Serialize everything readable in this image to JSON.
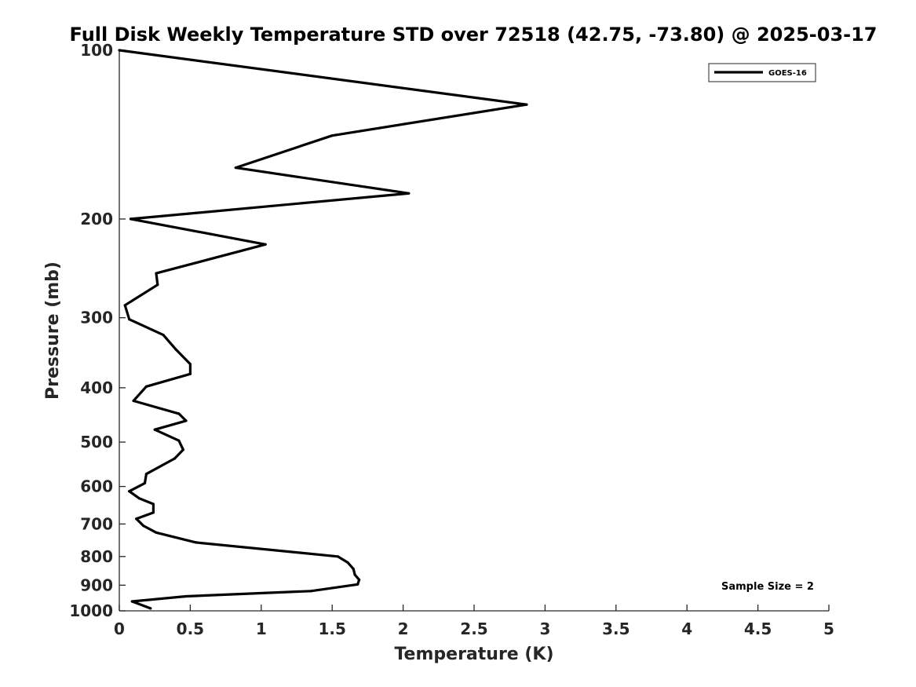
{
  "chart_data": {
    "type": "line",
    "title": "Full Disk Weekly Temperature STD over 72518 (42.75, -73.80) @ 2025-03-17",
    "xlabel": "Temperature (K)",
    "ylabel": "Pressure (mb)",
    "xlim": [
      0,
      5
    ],
    "ylim": [
      100,
      1000
    ],
    "yscale": "log",
    "y_reversed": true,
    "grid": false,
    "x_ticks": [
      0,
      0.5,
      1,
      1.5,
      2,
      2.5,
      3,
      3.5,
      4,
      4.5,
      5
    ],
    "x_tick_labels": [
      "0",
      "0.5",
      "1",
      "1.5",
      "2",
      "2.5",
      "3",
      "3.5",
      "4",
      "4.5",
      "5"
    ],
    "y_ticks": [
      100,
      200,
      300,
      400,
      500,
      600,
      700,
      800,
      900,
      1000
    ],
    "y_tick_labels": [
      "100",
      "200",
      "300",
      "400",
      "500",
      "600",
      "700",
      "800",
      "900",
      "1000"
    ],
    "legend": {
      "position": "top-right",
      "entries": [
        "GOES-16"
      ]
    },
    "annotation": "Sample Size = 2",
    "series": [
      {
        "name": "GOES-16",
        "color": "#000000",
        "points": [
          {
            "t": 0.0,
            "p": 100
          },
          {
            "t": 2.87,
            "p": 125
          },
          {
            "t": 1.5,
            "p": 142
          },
          {
            "t": 0.82,
            "p": 162
          },
          {
            "t": 2.04,
            "p": 180
          },
          {
            "t": 0.08,
            "p": 200
          },
          {
            "t": 1.03,
            "p": 222
          },
          {
            "t": 0.26,
            "p": 250
          },
          {
            "t": 0.27,
            "p": 262
          },
          {
            "t": 0.04,
            "p": 285
          },
          {
            "t": 0.07,
            "p": 302
          },
          {
            "t": 0.31,
            "p": 322
          },
          {
            "t": 0.4,
            "p": 342
          },
          {
            "t": 0.5,
            "p": 363
          },
          {
            "t": 0.5,
            "p": 378
          },
          {
            "t": 0.19,
            "p": 398
          },
          {
            "t": 0.1,
            "p": 422
          },
          {
            "t": 0.42,
            "p": 445
          },
          {
            "t": 0.47,
            "p": 458
          },
          {
            "t": 0.25,
            "p": 475
          },
          {
            "t": 0.42,
            "p": 497
          },
          {
            "t": 0.45,
            "p": 516
          },
          {
            "t": 0.39,
            "p": 535
          },
          {
            "t": 0.19,
            "p": 570
          },
          {
            "t": 0.18,
            "p": 592
          },
          {
            "t": 0.07,
            "p": 612
          },
          {
            "t": 0.14,
            "p": 630
          },
          {
            "t": 0.24,
            "p": 645
          },
          {
            "t": 0.24,
            "p": 668
          },
          {
            "t": 0.12,
            "p": 685
          },
          {
            "t": 0.17,
            "p": 705
          },
          {
            "t": 0.26,
            "p": 725
          },
          {
            "t": 0.54,
            "p": 755
          },
          {
            "t": 1.54,
            "p": 800
          },
          {
            "t": 1.61,
            "p": 820
          },
          {
            "t": 1.65,
            "p": 842
          },
          {
            "t": 1.66,
            "p": 862
          },
          {
            "t": 1.69,
            "p": 880
          },
          {
            "t": 1.68,
            "p": 897
          },
          {
            "t": 1.35,
            "p": 922
          },
          {
            "t": 0.47,
            "p": 942
          },
          {
            "t": 0.09,
            "p": 962
          },
          {
            "t": 0.22,
            "p": 990
          }
        ]
      }
    ]
  }
}
